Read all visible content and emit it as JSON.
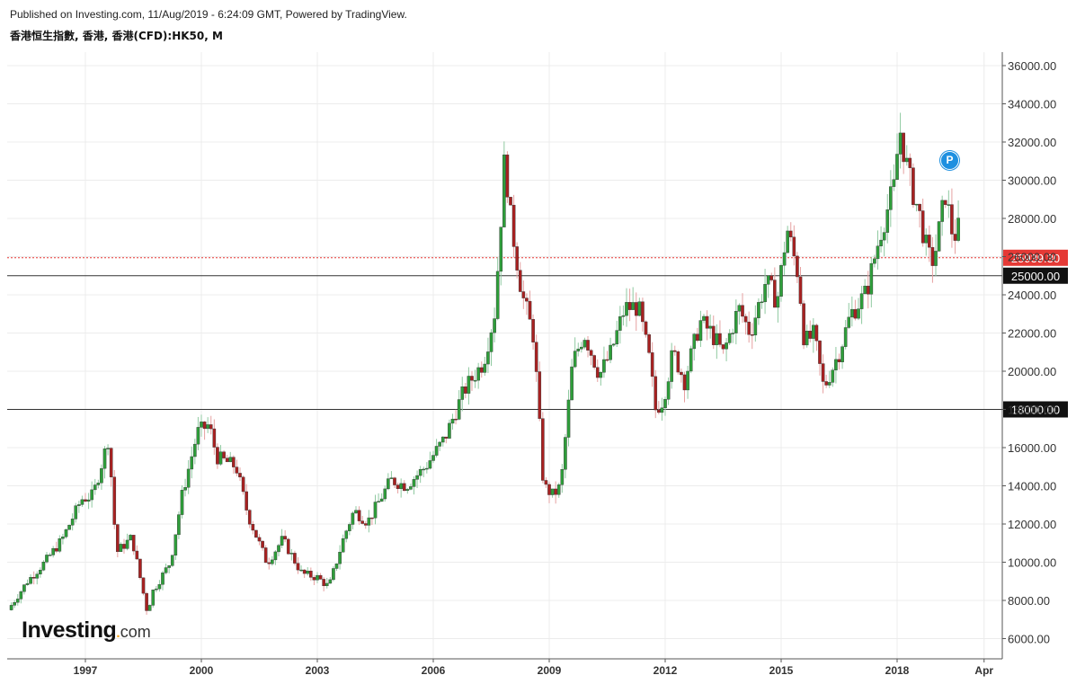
{
  "header": {
    "published": "Published on Investing.com, 11/Aug/2019 - 6:24:09 GMT, Powered by TradingView.",
    "symbol": "香港恒生指數, 香港, 香港(CFD):HK50, M"
  },
  "logo": {
    "brand": "Investing",
    "suffix": "com"
  },
  "marker": {
    "label": "P",
    "color": "#1e90e0"
  },
  "colors": {
    "up": "#2e9e3a",
    "down": "#a82121",
    "grid": "#ececec",
    "current_line": "#e53935",
    "level_line": "#333333"
  },
  "chart_data": {
    "type": "candlestick",
    "title": "",
    "xlabel": "",
    "ylabel": "",
    "ylim": [
      5000,
      36500
    ],
    "y_ticks": [
      "36000.00",
      "34000.00",
      "32000.00",
      "30000.00",
      "28000.00",
      "26000.00",
      "24000.00",
      "22000.00",
      "20000.00",
      "18000.00",
      "16000.00",
      "14000.00",
      "12000.00",
      "10000.00",
      "8000.00",
      "6000.00"
    ],
    "x_ticks": [
      {
        "label": "1997",
        "t": 1997.0
      },
      {
        "label": "2000",
        "t": 2000.0
      },
      {
        "label": "2003",
        "t": 2003.0
      },
      {
        "label": "2006",
        "t": 2006.0
      },
      {
        "label": "2009",
        "t": 2009.0
      },
      {
        "label": "2012",
        "t": 2012.0
      },
      {
        "label": "2015",
        "t": 2015.0
      },
      {
        "label": "2018",
        "t": 2018.0
      },
      {
        "label": "Apr",
        "t": 2020.25
      }
    ],
    "x_range": [
      1995.1,
      2020.55
    ],
    "current_price": {
      "value": 25939.3,
      "label": "25939.30"
    },
    "levels": [
      {
        "value": 25000,
        "label": "25000.00"
      },
      {
        "value": 18000,
        "label": "18000.00"
      }
    ],
    "close_points": [
      [
        1995.0,
        7500
      ],
      [
        1995.5,
        9000
      ],
      [
        1995.95,
        10000
      ],
      [
        1996.4,
        11200
      ],
      [
        1996.9,
        13300
      ],
      [
        1997.2,
        13500
      ],
      [
        1997.6,
        16500
      ],
      [
        1997.8,
        10500
      ],
      [
        1998.2,
        11300
      ],
      [
        1998.6,
        7400
      ],
      [
        1998.75,
        8500
      ],
      [
        1999.2,
        10000
      ],
      [
        1999.5,
        13500
      ],
      [
        1999.9,
        16800
      ],
      [
        2000.2,
        17200
      ],
      [
        2000.4,
        15500
      ],
      [
        2000.9,
        15000
      ],
      [
        2001.2,
        12500
      ],
      [
        2001.7,
        9950
      ],
      [
        2002.1,
        11200
      ],
      [
        2002.6,
        9400
      ],
      [
        2003.0,
        9200
      ],
      [
        2003.3,
        8700
      ],
      [
        2003.7,
        11400
      ],
      [
        2003.95,
        12700
      ],
      [
        2004.3,
        12100
      ],
      [
        2004.9,
        14300
      ],
      [
        2005.3,
        14000
      ],
      [
        2005.8,
        15000
      ],
      [
        2006.3,
        16500
      ],
      [
        2006.8,
        19000
      ],
      [
        2007.3,
        20500
      ],
      [
        2007.6,
        23200
      ],
      [
        2007.85,
        31300
      ],
      [
        2008.0,
        28000
      ],
      [
        2008.3,
        24000
      ],
      [
        2008.6,
        21800
      ],
      [
        2008.85,
        14000
      ],
      [
        2009.1,
        13500
      ],
      [
        2009.3,
        14000
      ],
      [
        2009.6,
        20400
      ],
      [
        2009.9,
        22000
      ],
      [
        2010.3,
        19800
      ],
      [
        2010.6,
        21000
      ],
      [
        2010.95,
        23300
      ],
      [
        2011.3,
        23400
      ],
      [
        2011.6,
        20500
      ],
      [
        2011.75,
        18000
      ],
      [
        2011.95,
        18500
      ],
      [
        2012.2,
        21000
      ],
      [
        2012.5,
        19500
      ],
      [
        2012.9,
        22600
      ],
      [
        2013.2,
        22000
      ],
      [
        2013.5,
        20900
      ],
      [
        2013.9,
        23300
      ],
      [
        2014.2,
        22000
      ],
      [
        2014.6,
        24700
      ],
      [
        2014.9,
        23700
      ],
      [
        2015.15,
        27500
      ],
      [
        2015.45,
        25000
      ],
      [
        2015.6,
        21500
      ],
      [
        2015.85,
        21900
      ],
      [
        2016.1,
        19100
      ],
      [
        2016.5,
        21000
      ],
      [
        2016.8,
        23000
      ],
      [
        2017.2,
        24100
      ],
      [
        2017.6,
        27500
      ],
      [
        2017.95,
        29800
      ],
      [
        2018.05,
        32900
      ],
      [
        2018.3,
        30200
      ],
      [
        2018.6,
        28000
      ],
      [
        2018.8,
        26000
      ],
      [
        2018.95,
        25800
      ],
      [
        2019.25,
        29300
      ],
      [
        2019.45,
        27000
      ],
      [
        2019.6,
        27500
      ],
      [
        2019.62,
        25939
      ]
    ]
  }
}
